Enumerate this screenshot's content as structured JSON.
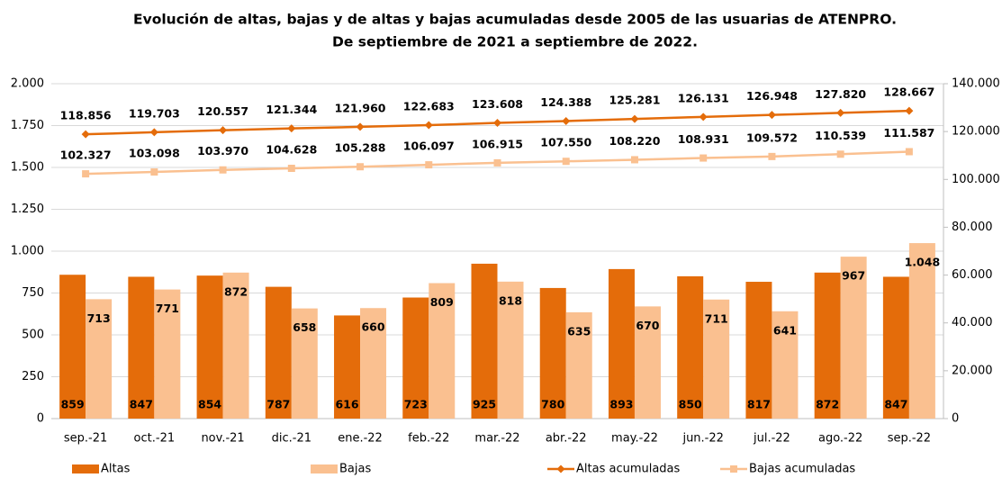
{
  "chart_data": {
    "type": "combo",
    "title": [
      "Evolución de altas, bajas y de altas y bajas acumuladas desde 2005 de las usuarias de ATENPRO.",
      "De septiembre de 2021 a septiembre de 2022."
    ],
    "categories": [
      "sep.-21",
      "oct.-21",
      "nov.-21",
      "dic.-21",
      "ene.-22",
      "feb.-22",
      "mar.-22",
      "abr.-22",
      "may.-22",
      "jun.-22",
      "jul.-22",
      "ago.-22",
      "sep.-22"
    ],
    "series": [
      {
        "name": "Altas",
        "type": "bar",
        "color": "#e46c0a",
        "values": [
          859,
          847,
          854,
          787,
          616,
          723,
          925,
          780,
          893,
          850,
          817,
          872,
          847
        ]
      },
      {
        "name": "Bajas",
        "type": "bar",
        "color": "#fac090",
        "values": [
          713,
          771,
          872,
          658,
          660,
          809,
          818,
          635,
          670,
          711,
          641,
          967,
          1048
        ],
        "value_labels": [
          "713",
          "771",
          "872",
          "658",
          "660",
          "809",
          "818",
          "635",
          "670",
          "711",
          "641",
          "967",
          "1.048"
        ]
      },
      {
        "name": "Altas acumuladas",
        "type": "line",
        "axis": "y2",
        "marker": "diamond",
        "color": "#e46c0a",
        "values": [
          118856,
          119703,
          120557,
          121344,
          121960,
          122683,
          123608,
          124388,
          125281,
          126131,
          126948,
          127820,
          128667
        ],
        "value_labels": [
          "118.856",
          "119.703",
          "120.557",
          "121.344",
          "121.960",
          "122.683",
          "123.608",
          "124.388",
          "125.281",
          "126.131",
          "126.948",
          "127.820",
          "128.667"
        ]
      },
      {
        "name": "Bajas acumuladas",
        "type": "line",
        "axis": "y2",
        "marker": "square",
        "color": "#fac090",
        "values": [
          102327,
          103098,
          103970,
          104628,
          105288,
          106097,
          106915,
          107550,
          108220,
          108931,
          109572,
          110539,
          111587
        ],
        "value_labels": [
          "102.327",
          "103.098",
          "103.970",
          "104.628",
          "105.288",
          "106.097",
          "106.915",
          "107.550",
          "108.220",
          "108.931",
          "109.572",
          "110.539",
          "111.587"
        ]
      }
    ],
    "ylim": [
      0,
      2000
    ],
    "yticks": [
      0,
      250,
      500,
      750,
      {
        "value": 1000,
        "label": "1.000"
      },
      {
        "value": 1250,
        "label": "1.250"
      },
      {
        "value": 1500,
        "label": "1.500"
      },
      {
        "value": 1750,
        "label": "1.750"
      },
      {
        "value": 2000,
        "label": "2.000"
      }
    ],
    "y2lim": [
      0,
      140000
    ],
    "y2ticks": [
      0,
      {
        "value": 20000,
        "label": "20.000"
      },
      {
        "value": 40000,
        "label": "40.000"
      },
      {
        "value": 60000,
        "label": "60.000"
      },
      {
        "value": 80000,
        "label": "80.000"
      },
      {
        "value": 100000,
        "label": "100.000"
      },
      {
        "value": 120000,
        "label": "120.000"
      },
      {
        "value": 140000,
        "label": "140.000"
      }
    ],
    "grid": true,
    "legend": "bottom"
  }
}
